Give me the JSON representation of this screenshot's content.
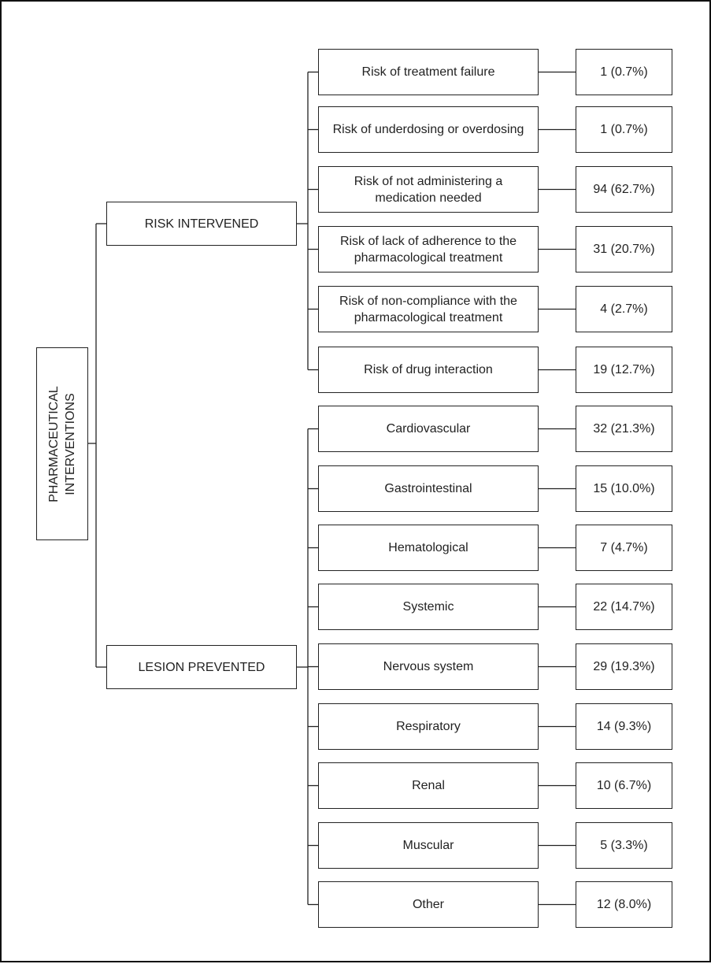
{
  "diagram": {
    "root": {
      "label_line1": "PHARMACEUTICAL",
      "label_line2": "INTERVENTIONS"
    },
    "groups": [
      {
        "label": "RISK INTERVENED",
        "items": [
          {
            "label": "Risk of treatment failure",
            "value": "1 (0.7%)"
          },
          {
            "label": "Risk of underdosing or overdosing",
            "value": "1 (0.7%)"
          },
          {
            "label": "Risk of not administering a medication needed",
            "value": "94 (62.7%)"
          },
          {
            "label": "Risk of lack of adherence to the pharmacological treatment",
            "value": "31 (20.7%)"
          },
          {
            "label": "Risk of non-compliance with the pharmacological treatment",
            "value": "4 (2.7%)"
          },
          {
            "label": "Risk of drug interaction",
            "value": "19 (12.7%)"
          }
        ]
      },
      {
        "label": "LESION PREVENTED",
        "items": [
          {
            "label": "Cardiovascular",
            "value": "32 (21.3%)"
          },
          {
            "label": "Gastrointestinal",
            "value": "15 (10.0%)"
          },
          {
            "label": "Hematological",
            "value": "7 (4.7%)"
          },
          {
            "label": "Systemic",
            "value": "22 (14.7%)"
          },
          {
            "label": "Nervous system",
            "value": "29 (19.3%)"
          },
          {
            "label": "Respiratory",
            "value": "14 (9.3%)"
          },
          {
            "label": "Renal",
            "value": "10 (6.7%)"
          },
          {
            "label": "Muscular",
            "value": "5 (3.3%)"
          },
          {
            "label": "Other",
            "value": "12 (8.0%)"
          }
        ]
      }
    ]
  }
}
